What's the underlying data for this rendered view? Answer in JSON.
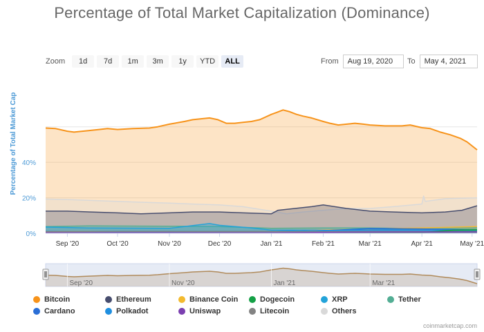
{
  "page": {
    "title": "Percentage of Total Market Capitalization (Dominance)",
    "credit": "coinmarketcap.com"
  },
  "zoom": {
    "label": "Zoom",
    "buttons": [
      "1d",
      "7d",
      "1m",
      "3m",
      "1y",
      "YTD",
      "ALL"
    ],
    "active": "ALL"
  },
  "range": {
    "from_label": "From",
    "from_value": "Aug 19, 2020",
    "to_label": "To",
    "to_value": "May 4, 2021"
  },
  "colors": {
    "bitcoin": "#f7931a",
    "ethereum": "#474d6e",
    "binance": "#f3ba2f",
    "dogecoin": "#14a046",
    "xrp": "#23a3d9",
    "tether": "#53ae94",
    "cardano": "#2a6ed6",
    "polkadot": "#1f8fe0",
    "uniswap": "#7b3fb0",
    "litecoin": "#838383",
    "others": "#d9d9d9"
  },
  "chart_data": {
    "type": "area",
    "title": "Percentage of Total Market Capitalization (Dominance)",
    "ylabel": "Percentage of Total Market Cap",
    "ylim": [
      0,
      70
    ],
    "yticks": [
      "0%",
      "20%",
      "40%"
    ],
    "ytick_values": [
      0,
      20,
      40
    ],
    "x_ticks": [
      "Sep '20",
      "Oct '20",
      "Nov '20",
      "Dec '20",
      "Jan '21",
      "Feb '21",
      "Mar '21",
      "Apr '21",
      "May '21"
    ],
    "x_tick_dates": [
      "2020-09-01",
      "2020-10-01",
      "2020-11-01",
      "2020-12-01",
      "2021-01-01",
      "2021-02-01",
      "2021-03-01",
      "2021-04-01",
      "2021-05-01"
    ],
    "x_start": "2020-08-19",
    "x_end": "2021-05-04",
    "navigator_ticks": [
      "Sep '20",
      "Nov '20",
      "Jan '21",
      "Mar '21"
    ],
    "navigator_tick_dates": [
      "2020-09-01",
      "2020-11-01",
      "2021-01-01",
      "2021-03-01"
    ],
    "grid": true,
    "legend_position": "bottom",
    "series": [
      {
        "name": "Bitcoin",
        "key": "bitcoin",
        "x": [
          "2020-08-19",
          "2020-08-25",
          "2020-09-01",
          "2020-09-05",
          "2020-09-10",
          "2020-09-15",
          "2020-09-20",
          "2020-09-25",
          "2020-10-01",
          "2020-10-10",
          "2020-10-20",
          "2020-10-25",
          "2020-11-01",
          "2020-11-10",
          "2020-11-15",
          "2020-11-20",
          "2020-11-25",
          "2020-11-30",
          "2020-12-05",
          "2020-12-10",
          "2020-12-15",
          "2020-12-20",
          "2020-12-25",
          "2021-01-01",
          "2021-01-04",
          "2021-01-08",
          "2021-01-12",
          "2021-01-16",
          "2021-01-20",
          "2021-01-25",
          "2021-02-01",
          "2021-02-05",
          "2021-02-10",
          "2021-02-15",
          "2021-02-20",
          "2021-02-25",
          "2021-03-01",
          "2021-03-10",
          "2021-03-20",
          "2021-03-25",
          "2021-04-01",
          "2021-04-06",
          "2021-04-12",
          "2021-04-18",
          "2021-04-24",
          "2021-04-28",
          "2021-05-04"
        ],
        "values": [
          59.3,
          59.0,
          57.5,
          57.0,
          57.5,
          58.0,
          58.5,
          59.0,
          58.5,
          59.0,
          59.3,
          60.0,
          61.5,
          63.0,
          64.0,
          64.5,
          65.0,
          64.0,
          62.0,
          62.0,
          62.5,
          63.0,
          64.0,
          67.0,
          68.0,
          69.5,
          68.5,
          67.0,
          66.0,
          65.0,
          63.0,
          62.0,
          61.0,
          61.5,
          62.0,
          61.5,
          61.0,
          60.5,
          60.5,
          61.0,
          59.5,
          59.0,
          57.0,
          55.5,
          53.5,
          51.5,
          47.0
        ]
      },
      {
        "name": "Others",
        "key": "others",
        "x": [
          "2020-08-19",
          "2020-09-01",
          "2020-09-15",
          "2020-10-01",
          "2020-10-15",
          "2020-11-01",
          "2020-11-15",
          "2020-12-01",
          "2020-12-15",
          "2021-01-01",
          "2021-01-10",
          "2021-01-20",
          "2021-02-01",
          "2021-02-15",
          "2021-03-01",
          "2021-03-15",
          "2021-04-01",
          "2021-04-02",
          "2021-04-03",
          "2021-04-15",
          "2021-05-04"
        ],
        "values": [
          19.3,
          19.0,
          18.5,
          18.0,
          17.5,
          17.0,
          16.5,
          16.0,
          15.0,
          12.5,
          11.0,
          12.0,
          13.0,
          14.0,
          14.0,
          15.0,
          16.5,
          21.0,
          18.0,
          19.5,
          20.0
        ]
      },
      {
        "name": "Ethereum",
        "key": "ethereum",
        "x": [
          "2020-08-19",
          "2020-09-01",
          "2020-09-15",
          "2020-10-01",
          "2020-10-15",
          "2020-11-01",
          "2020-11-15",
          "2020-12-01",
          "2020-12-15",
          "2021-01-01",
          "2021-01-05",
          "2021-01-15",
          "2021-01-25",
          "2021-02-01",
          "2021-02-15",
          "2021-03-01",
          "2021-03-15",
          "2021-04-01",
          "2021-04-15",
          "2021-04-25",
          "2021-05-04"
        ],
        "values": [
          12.5,
          12.5,
          12.0,
          11.5,
          11.0,
          11.5,
          12.0,
          12.0,
          11.5,
          11.0,
          13.0,
          14.0,
          15.0,
          16.0,
          14.0,
          12.5,
          12.0,
          11.5,
          12.0,
          13.0,
          15.5
        ]
      },
      {
        "name": "Tether",
        "key": "tether",
        "x": [
          "2020-08-19",
          "2020-09-15",
          "2020-11-01",
          "2020-12-01",
          "2021-01-01",
          "2021-02-01",
          "2021-03-01",
          "2021-04-01",
          "2021-05-04"
        ],
        "values": [
          3.8,
          4.2,
          4.0,
          3.8,
          2.8,
          3.0,
          3.0,
          2.7,
          2.5
        ]
      },
      {
        "name": "XRP",
        "key": "xrp",
        "x": [
          "2020-08-19",
          "2020-09-15",
          "2020-11-01",
          "2020-11-25",
          "2020-12-01",
          "2020-12-20",
          "2021-01-01",
          "2021-02-01",
          "2021-03-01",
          "2021-04-01",
          "2021-04-15",
          "2021-05-04"
        ],
        "values": [
          3.5,
          3.0,
          2.8,
          5.5,
          4.5,
          3.0,
          1.8,
          1.8,
          2.2,
          2.5,
          3.0,
          3.2
        ]
      },
      {
        "name": "Binance Coin",
        "key": "binance",
        "x": [
          "2020-08-19",
          "2020-10-01",
          "2020-12-01",
          "2021-01-01",
          "2021-02-01",
          "2021-03-01",
          "2021-04-01",
          "2021-05-04"
        ],
        "values": [
          1.0,
          1.0,
          1.0,
          0.9,
          1.8,
          2.5,
          3.0,
          3.8
        ]
      },
      {
        "name": "Cardano",
        "key": "cardano",
        "x": [
          "2020-08-19",
          "2020-10-01",
          "2020-12-01",
          "2021-01-01",
          "2021-02-01",
          "2021-03-01",
          "2021-04-01",
          "2021-05-04"
        ],
        "values": [
          1.0,
          0.8,
          1.0,
          1.0,
          1.5,
          2.7,
          2.5,
          1.9
        ]
      },
      {
        "name": "Polkadot",
        "key": "polkadot",
        "x": [
          "2020-08-19",
          "2020-10-01",
          "2020-12-01",
          "2021-01-01",
          "2021-02-01",
          "2021-03-01",
          "2021-04-01",
          "2021-05-04"
        ],
        "values": [
          0.8,
          1.0,
          1.0,
          1.0,
          1.6,
          1.9,
          1.8,
          1.7
        ]
      },
      {
        "name": "Litecoin",
        "key": "litecoin",
        "x": [
          "2020-08-19",
          "2020-10-01",
          "2020-12-01",
          "2021-01-01",
          "2021-02-01",
          "2021-03-01",
          "2021-04-01",
          "2021-05-04"
        ],
        "values": [
          0.9,
          1.0,
          1.0,
          1.0,
          0.9,
          0.8,
          0.8,
          0.8
        ]
      },
      {
        "name": "Dogecoin",
        "key": "dogecoin",
        "x": [
          "2020-08-19",
          "2020-12-01",
          "2021-01-01",
          "2021-02-01",
          "2021-03-01",
          "2021-04-01",
          "2021-04-20",
          "2021-05-04"
        ],
        "values": [
          0.2,
          0.2,
          0.2,
          0.5,
          0.4,
          0.5,
          1.8,
          2.0
        ]
      },
      {
        "name": "Uniswap",
        "key": "uniswap",
        "x": [
          "2020-08-19",
          "2020-10-01",
          "2020-12-01",
          "2021-01-01",
          "2021-03-01",
          "2021-05-04"
        ],
        "values": [
          0.3,
          0.3,
          0.3,
          0.3,
          0.7,
          0.8
        ]
      }
    ]
  },
  "legend": [
    {
      "label": "Bitcoin",
      "key": "bitcoin"
    },
    {
      "label": "Ethereum",
      "key": "ethereum"
    },
    {
      "label": "Binance Coin",
      "key": "binance"
    },
    {
      "label": "Dogecoin",
      "key": "dogecoin"
    },
    {
      "label": "XRP",
      "key": "xrp"
    },
    {
      "label": "Tether",
      "key": "tether"
    },
    {
      "label": "Cardano",
      "key": "cardano"
    },
    {
      "label": "Polkadot",
      "key": "polkadot"
    },
    {
      "label": "Uniswap",
      "key": "uniswap"
    },
    {
      "label": "Litecoin",
      "key": "litecoin"
    },
    {
      "label": "Others",
      "key": "others"
    }
  ]
}
